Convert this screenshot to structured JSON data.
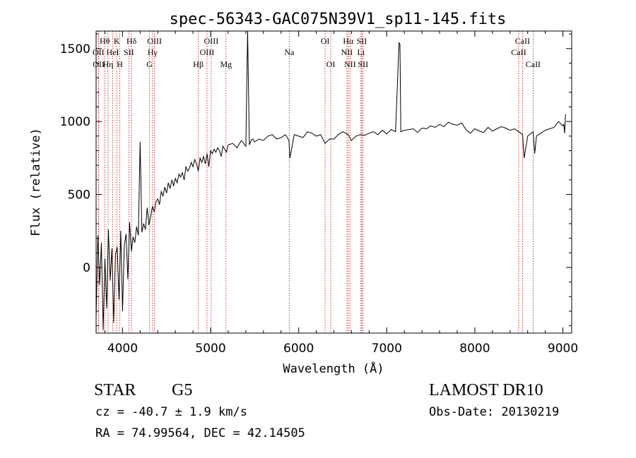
{
  "chart_data": {
    "type": "line",
    "title": "spec-56343-GAC075N39V1_sp11-145.fits",
    "xlabel": "Wavelength (Å)",
    "ylabel": "Flux (relative)",
    "xlim": [
      3700,
      9100
    ],
    "ylim": [
      -450,
      1620
    ],
    "xticks": [
      4000,
      5000,
      6000,
      7000,
      8000,
      9000
    ],
    "yticks": [
      0,
      500,
      1000,
      1500
    ],
    "grid": false,
    "line_color": "#000000",
    "marker_color": "#cc0000",
    "series": [
      {
        "x": [
          3700,
          3720,
          3740,
          3760,
          3780,
          3800,
          3820,
          3840,
          3860,
          3880,
          3900,
          3920,
          3940,
          3960,
          3980,
          4000,
          4020,
          4040,
          4060,
          4080,
          4100,
          4120,
          4140,
          4160,
          4180,
          4200,
          4220,
          4240,
          4260,
          4280,
          4300,
          4320,
          4340,
          4360,
          4380,
          4400,
          4420,
          4440,
          4460,
          4480,
          4500,
          4520,
          4540,
          4560,
          4580,
          4600,
          4620,
          4640,
          4660,
          4680,
          4700,
          4720,
          4740,
          4760,
          4780,
          4800,
          4820,
          4840,
          4860,
          4880,
          4900,
          4920,
          4940,
          4960,
          4980,
          5000,
          5020,
          5040,
          5060,
          5080,
          5100,
          5120,
          5140,
          5160,
          5180,
          5200,
          5250,
          5300,
          5350,
          5400,
          5420,
          5440,
          5460,
          5480,
          5500,
          5550,
          5600,
          5650,
          5700,
          5750,
          5800,
          5850,
          5890,
          5900,
          5950,
          6000,
          6050,
          6100,
          6150,
          6200,
          6250,
          6300,
          6350,
          6400,
          6450,
          6500,
          6563,
          6600,
          6650,
          6700,
          6750,
          6800,
          6850,
          6900,
          6950,
          7000,
          7050,
          7100,
          7140,
          7150,
          7160,
          7200,
          7250,
          7300,
          7350,
          7400,
          7450,
          7500,
          7550,
          7600,
          7650,
          7700,
          7750,
          7800,
          7850,
          7900,
          7950,
          8000,
          8050,
          8100,
          8150,
          8200,
          8250,
          8300,
          8350,
          8400,
          8450,
          8500,
          8542,
          8560,
          8600,
          8662,
          8680,
          8700,
          8750,
          8800,
          8850,
          8900,
          8950,
          9000,
          9010,
          9020,
          9030
        ],
        "y": [
          -350,
          220,
          -120,
          170,
          -430,
          60,
          -280,
          260,
          -90,
          130,
          -380,
          90,
          140,
          -220,
          250,
          -300,
          150,
          230,
          -80,
          310,
          110,
          210,
          170,
          280,
          220,
          860,
          240,
          300,
          260,
          410,
          290,
          350,
          420,
          380,
          450,
          470,
          430,
          520,
          490,
          550,
          510,
          580,
          540,
          600,
          560,
          610,
          580,
          640,
          620,
          650,
          600,
          690,
          660,
          680,
          720,
          690,
          740,
          710,
          660,
          750,
          720,
          760,
          710,
          780,
          690,
          800,
          780,
          810,
          790,
          820,
          800,
          760,
          830,
          810,
          790,
          840,
          850,
          820,
          870,
          830,
          1620,
          840,
          870,
          880,
          860,
          880,
          870,
          900,
          910,
          880,
          890,
          910,
          870,
          750,
          910,
          900,
          890,
          930,
          920,
          900,
          910,
          850,
          880,
          880,
          910,
          930,
          910,
          870,
          900,
          910,
          905,
          920,
          930,
          910,
          940,
          915,
          945,
          930,
          1540,
          1530,
          930,
          940,
          945,
          950,
          925,
          955,
          950,
          970,
          960,
          980,
          965,
          995,
          980,
          975,
          990,
          945,
          920,
          950,
          935,
          925,
          960,
          935,
          950,
          965,
          955,
          940,
          950,
          930,
          910,
          750,
          900,
          930,
          780,
          900,
          920,
          940,
          950,
          960,
          1000,
          970,
          980,
          920,
          1050
        ]
      }
    ],
    "line_markers": [
      {
        "label": "Hθ",
        "x": 3798,
        "row": 1
      },
      {
        "label": "OII",
        "x": 3727,
        "row": 2
      },
      {
        "label": "OII",
        "x": 3729,
        "row": 3
      },
      {
        "label": "K",
        "x": 3934,
        "row": 1
      },
      {
        "label": "HeI",
        "x": 3889,
        "row": 2
      },
      {
        "label": "Hη",
        "x": 3835,
        "row": 3
      },
      {
        "label": "Hδ",
        "x": 4102,
        "row": 1
      },
      {
        "label": "SII",
        "x": 4072,
        "row": 2
      },
      {
        "label": "H",
        "x": 3969,
        "row": 3
      },
      {
        "label": "OIII",
        "x": 4363,
        "row": 1
      },
      {
        "label": "Hγ",
        "x": 4341,
        "row": 2
      },
      {
        "label": "G",
        "x": 4305,
        "row": 3
      },
      {
        "label": "OIII",
        "x": 5007,
        "row": 1
      },
      {
        "label": "OIII",
        "x": 4959,
        "row": 2
      },
      {
        "label": "Hβ",
        "x": 4861,
        "row": 3
      },
      {
        "label": "Mg",
        "x": 5175,
        "row": 3
      },
      {
        "label": "Na",
        "x": 5893,
        "row": 2
      },
      {
        "label": "OI",
        "x": 6300,
        "row": 1
      },
      {
        "label": "OI",
        "x": 6364,
        "row": 3
      },
      {
        "label": "Hα",
        "x": 6563,
        "row": 1
      },
      {
        "label": "SII",
        "x": 6716,
        "row": 1
      },
      {
        "label": "NII",
        "x": 6548,
        "row": 2
      },
      {
        "label": "Li",
        "x": 6708,
        "row": 2
      },
      {
        "label": "NII",
        "x": 6583,
        "row": 3
      },
      {
        "label": "SII",
        "x": 6731,
        "row": 3
      },
      {
        "label": "CaII",
        "x": 8542,
        "row": 1
      },
      {
        "label": "CaII",
        "x": 8498,
        "row": 2
      },
      {
        "label": "CaII",
        "x": 8662,
        "row": 3
      }
    ]
  },
  "info": {
    "object_class": "STAR",
    "subclass": "G5",
    "survey": "LAMOST DR10",
    "redshift_line": "cz = -40.7 ± 1.9 km/s",
    "obs_date": "Obs-Date: 20130219",
    "coords": "RA =  74.99564, DEC =  42.14505"
  }
}
